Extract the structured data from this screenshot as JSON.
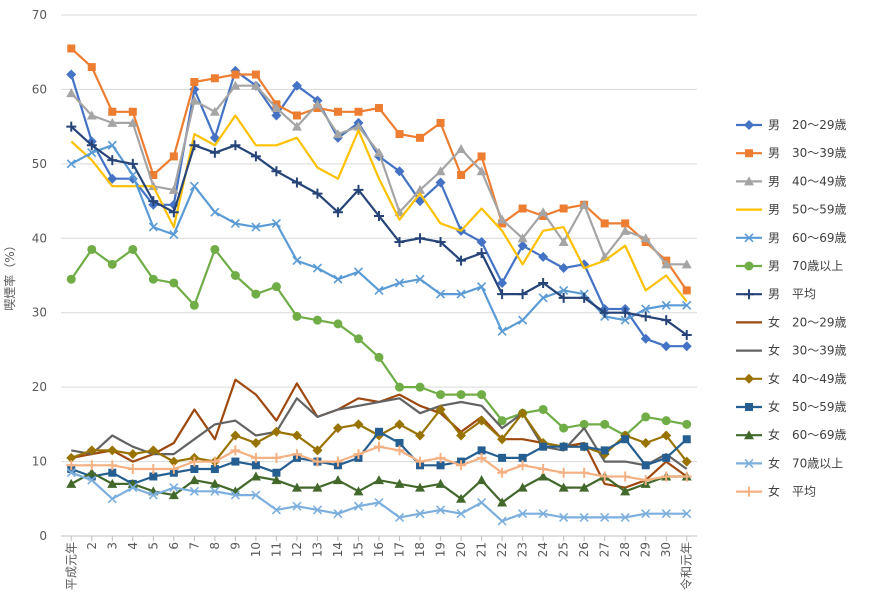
{
  "chart_data": {
    "type": "line",
    "title": "",
    "xlabel": "",
    "ylabel": "喫煙率（%）",
    "ylim": [
      0,
      70
    ],
    "yticks": [
      0,
      10,
      20,
      30,
      40,
      50,
      60,
      70
    ],
    "grid": "y",
    "legend_position": "right",
    "categories": [
      "平成元年",
      "2",
      "3",
      "4",
      "5",
      "6",
      "7",
      "8",
      "9",
      "10",
      "11",
      "12",
      "13",
      "14",
      "15",
      "16",
      "17",
      "18",
      "19",
      "20",
      "21",
      "22",
      "23",
      "24",
      "25",
      "26",
      "27",
      "28",
      "29",
      "30",
      "令和元年"
    ],
    "series": [
      {
        "name": "男　20〜29歳",
        "color": "#4472C4",
        "marker": "diamond",
        "values": [
          62,
          53,
          48,
          48,
          44.5,
          44.5,
          60,
          53.5,
          62.5,
          60.5,
          56.5,
          60.5,
          58.5,
          53.5,
          55.5,
          51,
          49,
          45,
          47.5,
          41,
          39.5,
          34,
          39,
          37.5,
          36,
          36.5,
          30.5,
          30.5,
          26.5,
          25.5,
          25.5
        ]
      },
      {
        "name": "男　30〜39歳",
        "color": "#ED7D31",
        "marker": "square",
        "values": [
          65.5,
          63,
          57,
          57,
          48.5,
          51,
          61,
          61.5,
          62,
          62,
          58,
          56.5,
          57.5,
          57,
          57,
          57.5,
          54,
          53.5,
          55.5,
          48.5,
          51,
          42,
          44,
          43,
          44,
          44.5,
          42,
          42,
          39.5,
          37,
          33
        ]
      },
      {
        "name": "男　40〜49歳",
        "color": "#A5A5A5",
        "marker": "triangle",
        "values": [
          59.5,
          56.5,
          55.5,
          55.5,
          47,
          46.5,
          58.5,
          57,
          60.5,
          60.5,
          57.5,
          55,
          58,
          54,
          55,
          51.5,
          43.5,
          46.5,
          49,
          52,
          49,
          42.5,
          40,
          43.5,
          39.5,
          44.5,
          37.5,
          41,
          40,
          36.5,
          36.5
        ]
      },
      {
        "name": "男　50〜59歳",
        "color": "#FFC000",
        "marker": "none",
        "values": [
          53,
          50.5,
          47,
          47,
          47,
          41.5,
          54,
          52.5,
          56.5,
          52.5,
          52.5,
          53.5,
          49.5,
          48,
          54.5,
          48,
          42.5,
          46,
          42,
          41,
          44,
          41,
          36.5,
          41,
          41.5,
          36,
          37,
          39,
          33,
          35,
          31.5
        ]
      },
      {
        "name": "男　60〜69歳",
        "color": "#5B9BD5",
        "marker": "x",
        "values": [
          50,
          51.5,
          52.5,
          48.5,
          41.5,
          40.5,
          47,
          43.5,
          42,
          41.5,
          42,
          37,
          36,
          34.5,
          35.5,
          33,
          34,
          34.5,
          32.5,
          32.5,
          33.5,
          27.5,
          29,
          32,
          33,
          32.5,
          29.5,
          29,
          30.5,
          31,
          31
        ]
      },
      {
        "name": "男　70歳以上",
        "color": "#70AD47",
        "marker": "circle",
        "values": [
          34.5,
          38.5,
          36.5,
          38.5,
          34.5,
          34,
          31,
          38.5,
          35,
          32.5,
          33.5,
          29.5,
          29,
          28.5,
          26.5,
          24,
          20,
          20,
          19,
          19,
          19,
          15.5,
          16.5,
          17,
          14.5,
          15,
          15,
          13.5,
          16,
          15.5,
          15
        ]
      },
      {
        "name": "男　平均",
        "color": "#264478",
        "marker": "plus",
        "values": [
          55,
          52.5,
          50.5,
          50,
          45,
          43.5,
          52.5,
          51.5,
          52.5,
          51,
          49,
          47.5,
          46,
          43.5,
          46.5,
          43,
          39.5,
          40,
          39.5,
          37,
          38,
          32.5,
          32.5,
          34,
          32,
          32,
          30,
          30,
          29.5,
          29,
          27
        ]
      },
      {
        "name": "女　20〜29歳",
        "color": "#9E480E",
        "marker": "none",
        "values": [
          10.5,
          11,
          11.5,
          10,
          11,
          12.5,
          17,
          13,
          21,
          19,
          15.5,
          20.5,
          16,
          17,
          18.5,
          18,
          19,
          17.5,
          16.5,
          14,
          16,
          13,
          13,
          12.5,
          12,
          12.5,
          7,
          6.5,
          7.5,
          10,
          8
        ]
      },
      {
        "name": "女　30〜39歳",
        "color": "#636363",
        "marker": "none",
        "values": [
          11.5,
          11,
          13.5,
          12,
          11,
          11,
          13,
          15,
          15.5,
          13.5,
          14,
          18.5,
          16,
          17,
          17.5,
          18,
          18.5,
          16.5,
          17.5,
          18,
          17.5,
          14.5,
          16.5,
          12,
          11.5,
          14.5,
          10,
          10,
          9.5,
          11,
          9
        ]
      },
      {
        "name": "女　40〜49歳",
        "color": "#997300",
        "marker": "diamond",
        "values": [
          10.5,
          11.5,
          11.5,
          11,
          11.5,
          10,
          10.5,
          10,
          13.5,
          12.5,
          14,
          13.5,
          11.5,
          14.5,
          15,
          13.5,
          15,
          13.5,
          17,
          13.5,
          15.5,
          13,
          16.5,
          12.5,
          12,
          12,
          11,
          13.5,
          12.5,
          13.5,
          10
        ]
      },
      {
        "name": "女　50〜59歳",
        "color": "#255E91",
        "marker": "square",
        "values": [
          9,
          8,
          8.5,
          7,
          8,
          8.5,
          9,
          9,
          10,
          9.5,
          8.5,
          10.5,
          10,
          9.5,
          10.5,
          14,
          12.5,
          9.5,
          9.5,
          10,
          11.5,
          10.5,
          10.5,
          12,
          12,
          12,
          11.5,
          13,
          9.5,
          10.5,
          13
        ]
      },
      {
        "name": "女　60〜69歳",
        "color": "#43682B",
        "marker": "triangle",
        "values": [
          7,
          8.5,
          7,
          7,
          6,
          5.5,
          7.5,
          7,
          6,
          8,
          7.5,
          6.5,
          6.5,
          7.5,
          6,
          7.5,
          7,
          6.5,
          7,
          5,
          7.5,
          4.5,
          6.5,
          8,
          6.5,
          6.5,
          8,
          6,
          7,
          8,
          8
        ]
      },
      {
        "name": "女　70歳以上",
        "color": "#7CAFDD",
        "marker": "x",
        "values": [
          8.5,
          7.5,
          5,
          6.5,
          5.5,
          6.5,
          6,
          6,
          5.5,
          5.5,
          3.5,
          4,
          3.5,
          3,
          4,
          4.5,
          2.5,
          3,
          3.5,
          3,
          4.5,
          2,
          3,
          3,
          2.5,
          2.5,
          2.5,
          2.5,
          3,
          3,
          3
        ]
      },
      {
        "name": "女　平均",
        "color": "#F4B183",
        "marker": "plus",
        "values": [
          9.5,
          9.5,
          9.5,
          9,
          9,
          9,
          10,
          10,
          11.5,
          10.5,
          10.5,
          11,
          10,
          10,
          11,
          12,
          11.5,
          10,
          10.5,
          9.5,
          10.5,
          8.5,
          9.5,
          9,
          8.5,
          8.5,
          8,
          8,
          7.5,
          8,
          8
        ]
      }
    ]
  }
}
